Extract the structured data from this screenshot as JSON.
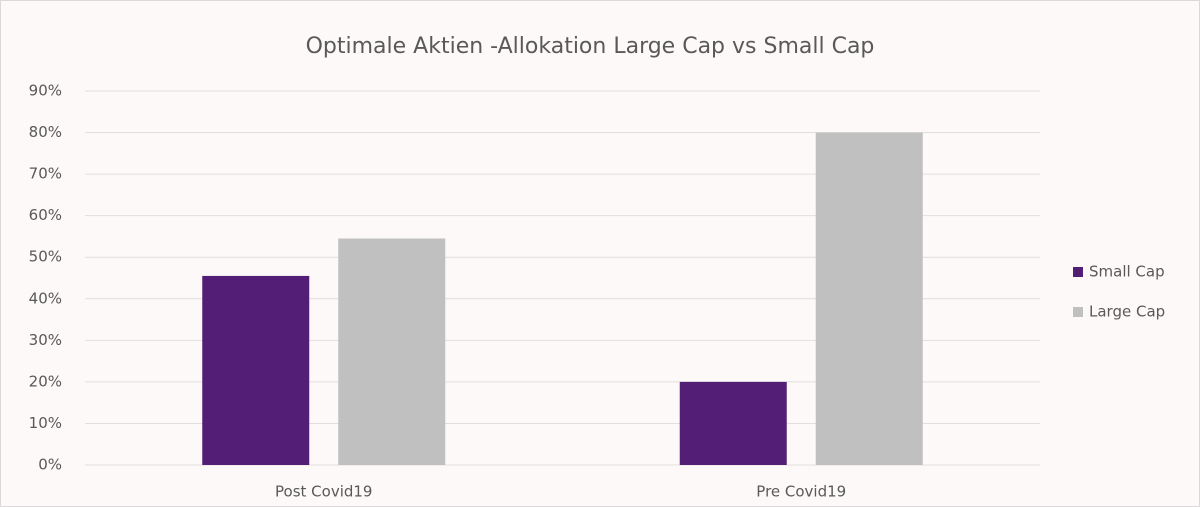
{
  "chart_data": {
    "type": "bar",
    "title": "Optimale Aktien -Allokation Large Cap vs Small Cap",
    "categories": [
      "Post Covid19",
      "Pre Covid19"
    ],
    "series": [
      {
        "name": "Small Cap",
        "color": "#531f76",
        "values": [
          45.5,
          20
        ]
      },
      {
        "name": "Large Cap",
        "color": "#c0c0c0",
        "values": [
          54.5,
          80
        ]
      }
    ],
    "ylim": [
      0,
      90
    ],
    "yticks": [
      {
        "value": 0,
        "label": "0%"
      },
      {
        "value": 10,
        "label": "10%"
      },
      {
        "value": 20,
        "label": "20%"
      },
      {
        "value": 30,
        "label": "30%"
      },
      {
        "value": 40,
        "label": "40%"
      },
      {
        "value": 50,
        "label": "50%"
      },
      {
        "value": 60,
        "label": "60%"
      },
      {
        "value": 70,
        "label": "70%"
      },
      {
        "value": 80,
        "label": "80%"
      },
      {
        "value": 90,
        "label": "90%"
      }
    ],
    "grid": true,
    "legend": "right"
  }
}
